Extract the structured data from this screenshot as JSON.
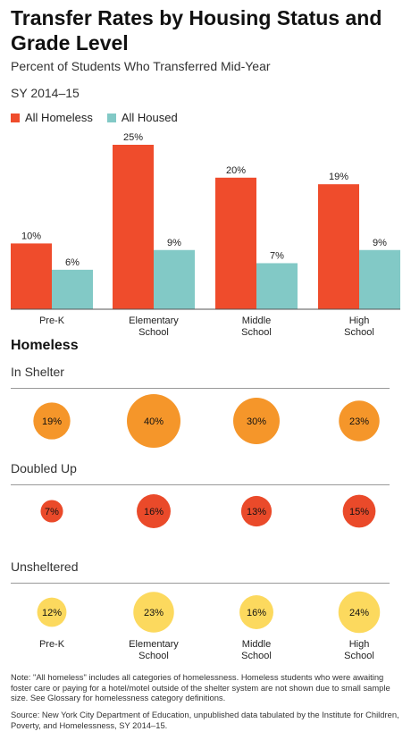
{
  "title": "Transfer Rates by Housing Status and Grade Level",
  "subtitle": "Percent of Students Who Transferred Mid-Year",
  "period": "SY 2014–15",
  "colors": {
    "homeless": "#ef4c2c",
    "housed": "#82c9c6",
    "shelter": "#f5962a",
    "doubled": "#ea4a2a",
    "unsheltered": "#fcd95e"
  },
  "chart_data": [
    {
      "type": "bar",
      "categories": [
        [
          "Pre-K"
        ],
        [
          "Elementary",
          "School"
        ],
        [
          "Middle",
          "School"
        ],
        [
          "High",
          "School"
        ]
      ],
      "series": [
        {
          "name": "All Homeless",
          "values": [
            10,
            25,
            20,
            19
          ],
          "labels": [
            "10%",
            "25%",
            "20%",
            "19%"
          ]
        },
        {
          "name": "All Housed",
          "values": [
            6,
            9,
            7,
            9
          ],
          "labels": [
            "6%",
            "9%",
            "7%",
            "9%"
          ]
        }
      ],
      "ylim": [
        0,
        25
      ]
    },
    {
      "type": "bubble",
      "section": "Homeless",
      "categories": [
        "Pre-K",
        "Elementary School",
        "Middle School",
        "High School"
      ],
      "bottom_labels": [
        [
          "Pre-K"
        ],
        [
          "Elementary",
          "School"
        ],
        [
          "Middle",
          "School"
        ],
        [
          "High",
          "School"
        ]
      ],
      "groups": [
        {
          "name": "In Shelter",
          "values": [
            19,
            40,
            30,
            23
          ],
          "labels": [
            "19%",
            "40%",
            "30%",
            "23%"
          ]
        },
        {
          "name": "Doubled Up",
          "values": [
            7,
            16,
            13,
            15
          ],
          "labels": [
            "7%",
            "16%",
            "13%",
            "15%"
          ]
        },
        {
          "name": "Unsheltered",
          "values": [
            12,
            23,
            16,
            24
          ],
          "labels": [
            "12%",
            "23%",
            "16%",
            "24%"
          ]
        }
      ]
    }
  ],
  "note": "Note: \"All homeless\" includes all categories of homelessness. Homeless students who were awaiting foster care or paying for a hotel/motel outside of the shelter system are not shown due to small sample size. See Glossary for homelessness category definitions.",
  "source": "Source: New York City Department of Education, unpublished data tabulated by the Institute for Children, Poverty, and Homelessness, SY 2014–15."
}
